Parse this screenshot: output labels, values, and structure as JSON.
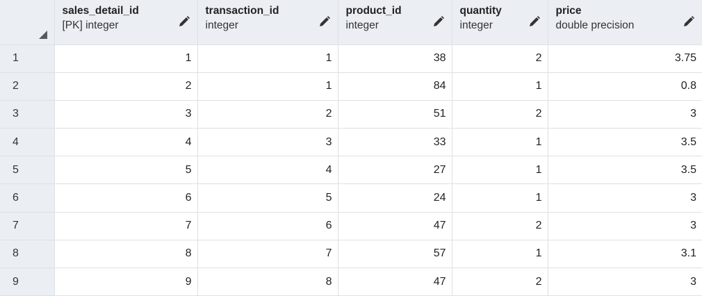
{
  "columns": [
    {
      "name": "sales_detail_id",
      "type": "[PK] integer",
      "edit_icon": "pencil-icon"
    },
    {
      "name": "transaction_id",
      "type": "integer",
      "edit_icon": "pencil-icon"
    },
    {
      "name": "product_id",
      "type": "integer",
      "edit_icon": "pencil-icon"
    },
    {
      "name": "quantity",
      "type": "integer",
      "edit_icon": "pencil-icon"
    },
    {
      "name": "price",
      "type": "double precision",
      "edit_icon": "pencil-icon"
    }
  ],
  "rows": [
    {
      "num": "1",
      "cells": [
        "1",
        "1",
        "38",
        "2",
        "3.75"
      ]
    },
    {
      "num": "2",
      "cells": [
        "2",
        "1",
        "84",
        "1",
        "0.8"
      ]
    },
    {
      "num": "3",
      "cells": [
        "3",
        "2",
        "51",
        "2",
        "3"
      ]
    },
    {
      "num": "4",
      "cells": [
        "4",
        "3",
        "33",
        "1",
        "3.5"
      ]
    },
    {
      "num": "5",
      "cells": [
        "5",
        "4",
        "27",
        "1",
        "3.5"
      ]
    },
    {
      "num": "6",
      "cells": [
        "6",
        "5",
        "24",
        "1",
        "3"
      ]
    },
    {
      "num": "7",
      "cells": [
        "7",
        "6",
        "47",
        "2",
        "3"
      ]
    },
    {
      "num": "8",
      "cells": [
        "8",
        "7",
        "57",
        "1",
        "3.1"
      ]
    },
    {
      "num": "9",
      "cells": [
        "9",
        "8",
        "47",
        "2",
        "3"
      ]
    }
  ],
  "colors": {
    "header_bg": "#ebeef3",
    "grid_line": "#dde0e4",
    "text": "#222222"
  }
}
